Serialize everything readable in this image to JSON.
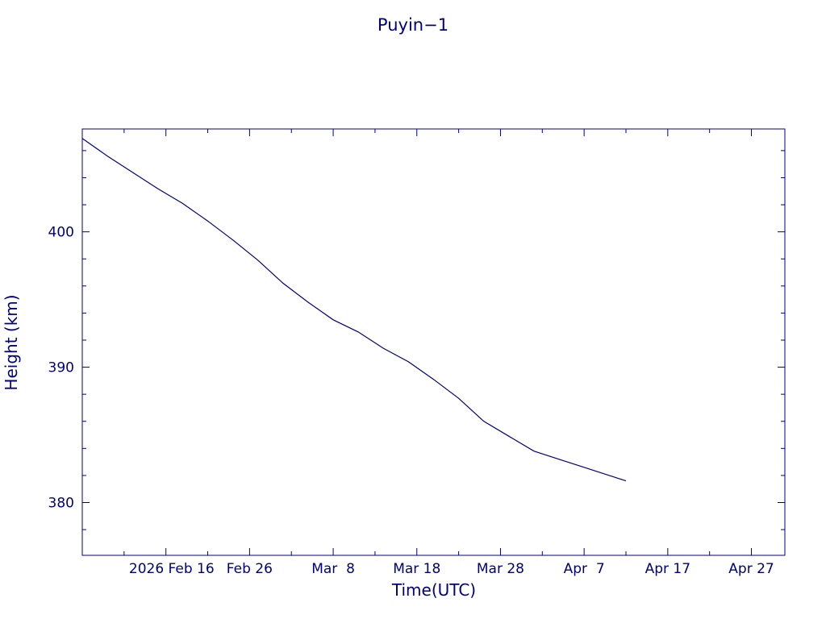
{
  "chart_data": {
    "type": "line",
    "title": "Puyin−1",
    "xlabel": "Time(UTC)",
    "ylabel": "Height (km)",
    "color": "#00007f",
    "x_ticks": [
      "2026 Feb 16",
      "Feb 26",
      "Mar  8",
      "Mar 18",
      "Mar 28",
      "Apr  7",
      "Apr 17",
      "Apr 27"
    ],
    "y_ticks": [
      380,
      390,
      400
    ],
    "ylim": [
      376.1,
      407.6
    ],
    "xlim": [
      "2026-02-06T00:00",
      "2026-05-01T00:00"
    ],
    "grid": false,
    "series": [
      {
        "x": [
          "2026-02-06",
          "2026-02-09",
          "2026-02-12",
          "2026-02-15",
          "2026-02-18",
          "2026-02-21",
          "2026-02-24",
          "2026-02-27",
          "2026-03-02",
          "2026-03-05",
          "2026-03-08",
          "2026-03-11",
          "2026-03-14",
          "2026-03-17",
          "2026-03-20",
          "2026-03-23",
          "2026-03-26",
          "2026-03-29",
          "2026-04-01",
          "2026-04-04",
          "2026-04-07",
          "2026-04-10",
          "2026-04-12"
        ],
        "y": [
          406.9,
          405.6,
          404.4,
          403.2,
          402.1,
          400.8,
          399.4,
          397.9,
          396.2,
          394.8,
          393.5,
          392.6,
          391.4,
          390.4,
          389.1,
          387.7,
          386.0,
          384.9,
          383.8,
          383.2,
          382.6,
          382.0,
          381.6
        ]
      }
    ]
  }
}
